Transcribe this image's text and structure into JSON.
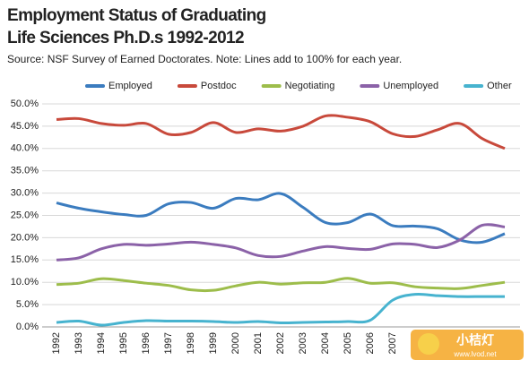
{
  "chart_data": {
    "type": "line",
    "title": [
      "Employment Status of Graduating",
      "Life Sciences Ph.D.s 1992-2012"
    ],
    "subtitle": "Source: NSF Survey of Earned Doctorates. Note: Lines add to 100% for each year.",
    "categories": [
      "1992",
      "1993",
      "1994",
      "1995",
      "1996",
      "1997",
      "1998",
      "1999",
      "2000",
      "2001",
      "2002",
      "2003",
      "2004",
      "2005",
      "2006",
      "2007",
      null,
      null,
      null,
      null,
      null
    ],
    "series": [
      {
        "name": "Employed",
        "color": "#3b7cbf",
        "values": [
          27.8,
          26.6,
          25.8,
          25.2,
          25.0,
          27.6,
          27.9,
          26.6,
          28.8,
          28.5,
          29.9,
          26.8,
          23.4,
          23.4,
          25.3,
          22.7,
          22.6,
          22.0,
          19.5,
          19.0,
          20.9
        ]
      },
      {
        "name": "Postdoc",
        "color": "#c8493b",
        "values": [
          46.5,
          46.7,
          45.6,
          45.2,
          45.6,
          43.2,
          43.6,
          45.8,
          43.6,
          44.4,
          43.9,
          45.0,
          47.3,
          47.0,
          46.0,
          43.3,
          42.7,
          44.2,
          45.6,
          42.2,
          40.0
        ]
      },
      {
        "name": "Negotiating",
        "color": "#9dbd4b",
        "values": [
          9.5,
          9.8,
          10.8,
          10.4,
          9.8,
          9.3,
          8.3,
          8.2,
          9.2,
          10.0,
          9.6,
          9.9,
          10.0,
          10.9,
          9.8,
          9.9,
          9.0,
          8.7,
          8.6,
          9.3,
          10.0
        ]
      },
      {
        "name": "Unemployed",
        "color": "#8b62a8",
        "values": [
          15.0,
          15.5,
          17.5,
          18.5,
          18.3,
          18.6,
          19.0,
          18.5,
          17.7,
          16.0,
          15.8,
          17.0,
          18.0,
          17.6,
          17.4,
          18.6,
          18.5,
          17.8,
          19.5,
          22.8,
          22.4
        ]
      },
      {
        "name": "Other",
        "color": "#47b3cf",
        "values": [
          1.0,
          1.3,
          0.4,
          1.0,
          1.4,
          1.3,
          1.3,
          1.2,
          1.0,
          1.2,
          0.9,
          1.0,
          1.1,
          1.2,
          1.5,
          6.0,
          7.3,
          7.0,
          6.8,
          6.8,
          6.8
        ]
      }
    ],
    "ylim": [
      0,
      50
    ],
    "yticks": [
      {
        "value": 0,
        "label": "0.0%"
      },
      {
        "value": 5,
        "label": "5.0%"
      },
      {
        "value": 10,
        "label": "10.0%"
      },
      {
        "value": 15,
        "label": "15.0%"
      },
      {
        "value": 20,
        "label": "20.0%"
      },
      {
        "value": 25,
        "label": "25.0%"
      },
      {
        "value": 30,
        "label": "30.0%"
      },
      {
        "value": 35,
        "label": "35.0%"
      },
      {
        "value": 40,
        "label": "40.0%"
      },
      {
        "value": 45,
        "label": "45.0%"
      },
      {
        "value": 50,
        "label": "50.0%"
      }
    ],
    "grid": true,
    "legend": "top",
    "watermark": [
      "小桔灯",
      "www.lvod.net"
    ]
  }
}
